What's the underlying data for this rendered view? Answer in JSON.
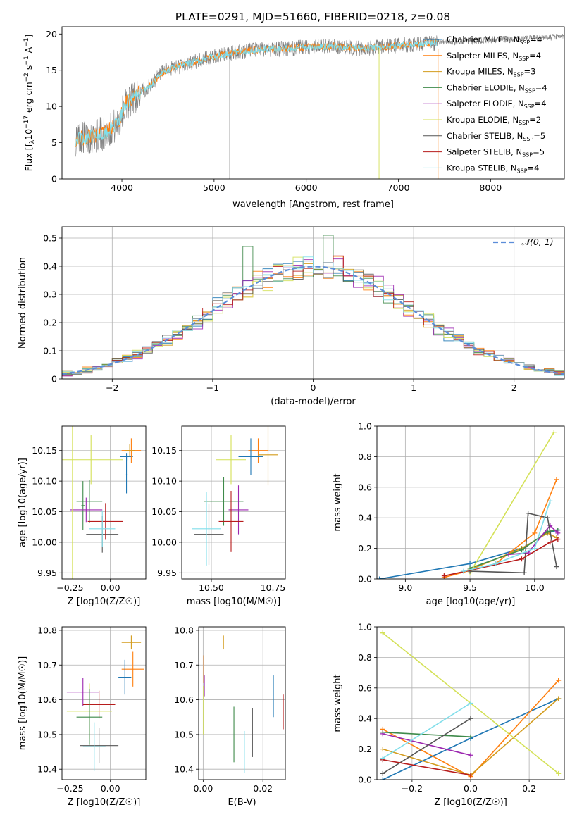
{
  "figure_title": "PLATE=0291, MJD=51660, FIBERID=0218, z=0.08",
  "models": [
    {
      "name": "Chabrier MILES, N",
      "sub": "SSP",
      "n": "=4",
      "color": "#1f77b4"
    },
    {
      "name": "Salpeter MILES, N",
      "sub": "SSP",
      "n": "=4",
      "color": "#ff7f0e"
    },
    {
      "name": "Kroupa MILES, N",
      "sub": "SSP",
      "n": "=3",
      "color": "#d39b1c"
    },
    {
      "name": "Chabrier ELODIE, N",
      "sub": "SSP",
      "n": "=4",
      "color": "#3e8a4a"
    },
    {
      "name": "Salpeter ELODIE, N",
      "sub": "SSP",
      "n": "=4",
      "color": "#9c27b0"
    },
    {
      "name": "Kroupa ELODIE, N",
      "sub": "SSP",
      "n": "=2",
      "color": "#d4e157"
    },
    {
      "name": "Chabrier STELIB, N",
      "sub": "SSP",
      "n": "=5",
      "color": "#555555"
    },
    {
      "name": "Salpeter STELIB, N",
      "sub": "SSP",
      "n": "=5",
      "color": "#b71c1c"
    },
    {
      "name": "Kroupa STELIB, N",
      "sub": "SSP",
      "n": "=4",
      "color": "#80deea"
    }
  ],
  "chart_data": [
    {
      "id": "spectrum",
      "type": "line",
      "xlabel": "wavelength [Angstrom, rest frame]",
      "ylabel": "Flux [f",
      "xlim": [
        3350,
        8800
      ],
      "ylim": [
        0,
        21
      ],
      "xticks": [
        4000,
        5000,
        6000,
        7000,
        8000
      ],
      "yticks": [
        0,
        5,
        10,
        15,
        20
      ],
      "shape_x": [
        3500,
        3650,
        3800,
        3950,
        4050,
        4150,
        4300,
        4450,
        4600,
        4800,
        5000,
        5200,
        5500,
        5800,
        6000,
        6300,
        6600,
        6900,
        7200,
        7420
      ],
      "shape_y": [
        5.5,
        5.8,
        6.3,
        7.5,
        10.5,
        11.5,
        12.8,
        14.8,
        15.5,
        16.2,
        16.9,
        17.4,
        17.9,
        18.0,
        18.2,
        18.3,
        18.0,
        18.3,
        18.6,
        18.8
      ],
      "legend_loc": "upper right"
    },
    {
      "id": "residuals",
      "type": "histogram",
      "xlabel": "(data-model)/error",
      "ylabel": "Normed distribution",
      "xlim": [
        -2.5,
        2.5
      ],
      "ylim": [
        0,
        0.54
      ],
      "xticks": [
        -2,
        -1,
        0,
        1,
        2
      ],
      "yticks": [
        0.0,
        0.1,
        0.2,
        0.3,
        0.4,
        0.5
      ],
      "bin_width": 0.1,
      "reference_curve": "N(0,1)",
      "legend_label": "𝒩(0, 1)",
      "legend_loc": "upper right"
    },
    {
      "id": "age_vs_Z",
      "type": "errorbar",
      "xlabel": "Z [log10(Z/Z☉)]",
      "ylabel": "age  [log10(age/yr)]",
      "xlim": [
        -0.3,
        0.22
      ],
      "ylim": [
        9.94,
        10.19
      ],
      "xticks": [
        -0.25,
        0.0
      ],
      "xticklabels": [
        "−0.25",
        "0.00"
      ],
      "yticks": [
        9.95,
        10.0,
        10.05,
        10.1,
        10.15
      ],
      "yticklabels": [
        "9.95",
        "10.00",
        "10.05",
        "10.10",
        "10.15"
      ],
      "points": [
        {
          "m": 0,
          "x": 0.1,
          "xerr": 0.04,
          "y": 10.14,
          "yerr": 0.006
        },
        {
          "m": 1,
          "x": 0.13,
          "xerr": 0.06,
          "y": 10.15,
          "yerr": 0.02
        },
        {
          "m": 2,
          "x": 0.12,
          "xerr": 0.03,
          "y": 10.15,
          "yerr": 0.01
        },
        {
          "m": 3,
          "x": -0.13,
          "xerr": 0.08,
          "y": 10.067,
          "yerr": 0.035
        },
        {
          "m": 3,
          "x": -0.17,
          "xerr": 0.01,
          "y": 10.06,
          "yerr": 0.04
        },
        {
          "m": 4,
          "x": -0.15,
          "xerr": 0.1,
          "y": 10.053,
          "yerr": 0.02
        },
        {
          "m": 0,
          "x": 0.1,
          "xerr": 0.005,
          "y": 10.11,
          "yerr": 0.03
        },
        {
          "m": 5,
          "x": -0.12,
          "xerr": 0.2,
          "y": 10.135,
          "yerr": 0.04
        },
        {
          "m": 5,
          "x": -0.235,
          "xerr": 0.005,
          "y": 10.05,
          "yerr": 0.14
        },
        {
          "m": 6,
          "x": -0.05,
          "xerr": 0.1,
          "y": 10.013,
          "yerr": 0.03
        },
        {
          "m": 7,
          "x": -0.03,
          "xerr": 0.11,
          "y": 10.034,
          "yerr": 0.03
        },
        {
          "m": 8,
          "x": -0.05,
          "xerr": 0.08,
          "y": 10.022,
          "yerr": 0.03
        }
      ]
    },
    {
      "id": "age_vs_mass",
      "type": "errorbar",
      "xlabel": "mass [log10(M/M☉)]",
      "ylabel": "",
      "xlim": [
        10.38,
        10.8
      ],
      "ylim": [
        9.94,
        10.19
      ],
      "xticks": [
        10.5,
        10.75
      ],
      "xticklabels": [
        "10.50",
        "10.75"
      ],
      "yticks": [
        9.95,
        10.0,
        10.05,
        10.1,
        10.15
      ],
      "yticklabels": [
        "9.95",
        "10.00",
        "10.05",
        "10.10",
        "10.15"
      ],
      "points": [
        {
          "m": 1,
          "x": 10.69,
          "xerr": 0.04,
          "y": 10.15,
          "yerr": 0.02
        },
        {
          "m": 0,
          "x": 10.66,
          "xerr": 0.05,
          "y": 10.14,
          "yerr": 0.03
        },
        {
          "m": 2,
          "x": 10.73,
          "xerr": 0.04,
          "y": 10.143,
          "yerr": 0.05
        },
        {
          "m": 3,
          "x": 10.55,
          "xerr": 0.08,
          "y": 10.067,
          "yerr": 0.04
        },
        {
          "m": 4,
          "x": 10.61,
          "xerr": 0.04,
          "y": 10.053,
          "yerr": 0.04
        },
        {
          "m": 5,
          "x": 10.58,
          "xerr": 0.06,
          "y": 10.135,
          "yerr": 0.04
        },
        {
          "m": 6,
          "x": 10.49,
          "xerr": 0.06,
          "y": 10.013,
          "yerr": 0.05
        },
        {
          "m": 7,
          "x": 10.58,
          "xerr": 0.05,
          "y": 10.034,
          "yerr": 0.05
        },
        {
          "m": 8,
          "x": 10.48,
          "xerr": 0.06,
          "y": 10.022,
          "yerr": 0.06
        }
      ]
    },
    {
      "id": "massweight_vs_age",
      "type": "line",
      "xlabel": "age  [log10(age/yr)]",
      "ylabel": "mass weight",
      "xlim": [
        8.78,
        10.23
      ],
      "ylim": [
        0,
        1.0
      ],
      "xticks": [
        9.0,
        9.5,
        10.0
      ],
      "xticklabels": [
        "9.0",
        "9.5",
        "10.0"
      ],
      "yticks": [
        0,
        0.2,
        0.4,
        0.6,
        0.8,
        1.0
      ],
      "yticklabels": [
        "0.0",
        "0.2",
        "0.4",
        "0.6",
        "0.8",
        "1.0"
      ],
      "series": [
        {
          "m": 0,
          "x": [
            8.8,
            9.5,
            9.9,
            10.1,
            10.18
          ],
          "y": [
            0.0,
            0.1,
            0.2,
            0.3,
            0.32
          ]
        },
        {
          "m": 1,
          "x": [
            9.3,
            9.7,
            10.0,
            10.17
          ],
          "y": [
            0.01,
            0.1,
            0.3,
            0.65
          ]
        },
        {
          "m": 2,
          "x": [
            9.5,
            9.9,
            10.1,
            10.17
          ],
          "y": [
            0.06,
            0.2,
            0.3,
            0.27
          ]
        },
        {
          "m": 3,
          "x": [
            9.5,
            9.9,
            10.1,
            10.18
          ],
          "y": [
            0.07,
            0.19,
            0.31,
            0.32
          ]
        },
        {
          "m": 4,
          "x": [
            9.8,
            9.95,
            10.12,
            10.18
          ],
          "y": [
            0.16,
            0.17,
            0.35,
            0.3
          ]
        },
        {
          "m": 5,
          "x": [
            9.5,
            10.15
          ],
          "y": [
            0.04,
            0.96
          ]
        },
        {
          "m": 6,
          "x": [
            9.5,
            9.92,
            9.95,
            10.1,
            10.17
          ],
          "y": [
            0.05,
            0.04,
            0.43,
            0.4,
            0.08
          ]
        },
        {
          "m": 7,
          "x": [
            9.3,
            9.9,
            10.12,
            10.18
          ],
          "y": [
            0.02,
            0.13,
            0.24,
            0.26
          ]
        },
        {
          "m": 8,
          "x": [
            9.45,
            9.7,
            10.0,
            10.12
          ],
          "y": [
            0.05,
            0.1,
            0.2,
            0.51
          ]
        }
      ]
    },
    {
      "id": "mass_vs_Z",
      "type": "errorbar",
      "xlabel": "Z [log10(Z/Z☉)]",
      "ylabel": "mass [log10(M/M☉)]",
      "xlim": [
        -0.3,
        0.22
      ],
      "ylim": [
        10.37,
        10.81
      ],
      "xticks": [
        -0.25,
        0.0
      ],
      "xticklabels": [
        "−0.25",
        "0.00"
      ],
      "yticks": [
        10.4,
        10.5,
        10.6,
        10.7,
        10.8
      ],
      "yticklabels": [
        "10.4",
        "10.5",
        "10.6",
        "10.7",
        "10.8"
      ],
      "points": [
        {
          "m": 2,
          "x": 0.13,
          "xerr": 0.06,
          "y": 10.765,
          "yerr": 0.02
        },
        {
          "m": 1,
          "x": 0.14,
          "xerr": 0.07,
          "y": 10.688,
          "yerr": 0.05
        },
        {
          "m": 0,
          "x": 0.09,
          "xerr": 0.04,
          "y": 10.665,
          "yerr": 0.05
        },
        {
          "m": 4,
          "x": -0.17,
          "xerr": 0.1,
          "y": 10.622,
          "yerr": 0.04
        },
        {
          "m": 7,
          "x": -0.07,
          "xerr": 0.1,
          "y": 10.586,
          "yerr": 0.04
        },
        {
          "m": 5,
          "x": -0.13,
          "xerr": 0.14,
          "y": 10.567,
          "yerr": 0.08
        },
        {
          "m": 3,
          "x": -0.13,
          "xerr": 0.08,
          "y": 10.55,
          "yerr": 0.08
        },
        {
          "m": 6,
          "x": -0.07,
          "xerr": 0.12,
          "y": 10.468,
          "yerr": 0.05
        },
        {
          "m": 8,
          "x": -0.1,
          "xerr": 0.07,
          "y": 10.465,
          "yerr": 0.07
        }
      ]
    },
    {
      "id": "mass_vs_EBV",
      "type": "errorbar",
      "xlabel": "E(B-V)",
      "ylabel": "",
      "xlim": [
        -0.0015,
        0.0275
      ],
      "ylim": [
        10.37,
        10.81
      ],
      "xticks": [
        0.0,
        0.02
      ],
      "xticklabels": [
        "0.00",
        "0.02"
      ],
      "yticks": [
        10.4,
        10.5,
        10.6,
        10.7,
        10.8
      ],
      "yticklabels": [
        "10.4",
        "10.5",
        "10.6",
        "10.7",
        "10.8"
      ],
      "points": [
        {
          "m": 2,
          "x": 0.0068,
          "xerr": 0.0,
          "y": 10.765,
          "yerr": 0.02
        },
        {
          "m": 1,
          "x": 0.0002,
          "xerr": 0.0,
          "y": 10.688,
          "yerr": 0.04
        },
        {
          "m": 0,
          "x": 0.0235,
          "xerr": 0.0,
          "y": 10.61,
          "yerr": 0.06
        },
        {
          "m": 7,
          "x": 0.0268,
          "xerr": 0.0,
          "y": 10.565,
          "yerr": 0.05
        },
        {
          "m": 5,
          "x": 0.0001,
          "xerr": 0.0,
          "y": 10.57,
          "yerr": 0.07
        },
        {
          "m": 3,
          "x": 0.0103,
          "xerr": 0.0,
          "y": 10.5,
          "yerr": 0.08
        },
        {
          "m": 6,
          "x": 0.0165,
          "xerr": 0.0,
          "y": 10.505,
          "yerr": 0.07
        },
        {
          "m": 8,
          "x": 0.0138,
          "xerr": 0.0,
          "y": 10.45,
          "yerr": 0.06
        },
        {
          "m": 4,
          "x": 0.0004,
          "xerr": 0.0,
          "y": 10.64,
          "yerr": 0.03
        }
      ]
    },
    {
      "id": "massweight_vs_Z",
      "type": "line",
      "xlabel": "Z [log10(Z/Z☉)]",
      "ylabel": "mass weight",
      "xlim": [
        -0.32,
        0.32
      ],
      "ylim": [
        0,
        1.0
      ],
      "xticks": [
        -0.2,
        0.0,
        0.2
      ],
      "xticklabels": [
        "−0.2",
        "0.0",
        "0.2"
      ],
      "yticks": [
        0,
        0.2,
        0.4,
        0.6,
        0.8,
        1.0
      ],
      "yticklabels": [
        "0.0",
        "0.2",
        "0.4",
        "0.6",
        "0.8",
        "1.0"
      ],
      "series": [
        {
          "m": 0,
          "x": [
            -0.3,
            0.0,
            0.3
          ],
          "y": [
            0.0,
            0.27,
            0.53
          ]
        },
        {
          "m": 1,
          "x": [
            -0.3,
            0.0,
            0.3
          ],
          "y": [
            0.33,
            0.02,
            0.65
          ]
        },
        {
          "m": 2,
          "x": [
            -0.3,
            0.0,
            0.3
          ],
          "y": [
            0.2,
            0.03,
            0.53
          ]
        },
        {
          "m": 3,
          "x": [
            -0.3,
            0.0
          ],
          "y": [
            0.31,
            0.28
          ]
        },
        {
          "m": 4,
          "x": [
            -0.3,
            0.0
          ],
          "y": [
            0.3,
            0.16
          ]
        },
        {
          "m": 5,
          "x": [
            -0.3,
            0.3
          ],
          "y": [
            0.96,
            0.04
          ]
        },
        {
          "m": 6,
          "x": [
            -0.3,
            0.0
          ],
          "y": [
            0.04,
            0.4
          ]
        },
        {
          "m": 7,
          "x": [
            -0.3,
            0.0
          ],
          "y": [
            0.13,
            0.03
          ]
        },
        {
          "m": 8,
          "x": [
            -0.3,
            0.0
          ],
          "y": [
            0.14,
            0.5
          ]
        }
      ]
    }
  ]
}
